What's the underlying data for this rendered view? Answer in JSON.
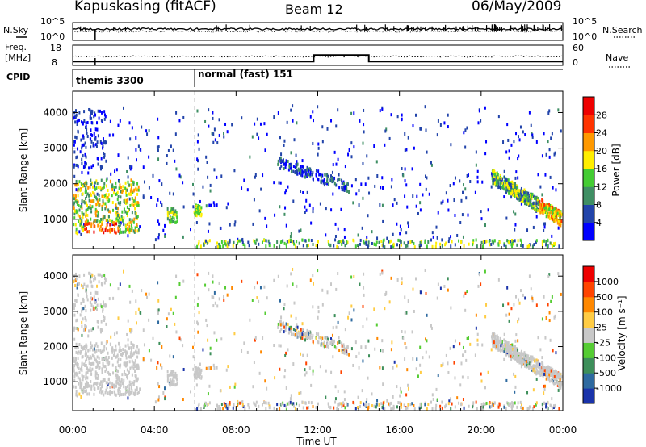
{
  "header": {
    "station": "Kapuskasing (fitACF)",
    "beam": "Beam 12",
    "date": "06/May/2009"
  },
  "top_panels": {
    "nsky_label": "N.Sky",
    "nsearch_label": "N.Search",
    "noise_ticks": [
      "10^5",
      "10^0"
    ],
    "freq_label_1": "Freq.",
    "freq_label_2": "[MHz]",
    "freq_ticks": [
      "18",
      "8"
    ],
    "nave_label": "Nave",
    "nave_ticks": [
      "60",
      "0"
    ],
    "cpid_label": "CPID",
    "cpid_segments": [
      {
        "label": "themis 3300",
        "start_hour": 0
      },
      {
        "label": "normal (fast) 151",
        "start_hour": 6
      }
    ]
  },
  "x_axis": {
    "label": "Time UT",
    "ticks": [
      "00:00",
      "04:00",
      "08:00",
      "12:00",
      "16:00",
      "20:00",
      "00:00"
    ]
  },
  "chart_data": [
    {
      "type": "heatmap",
      "name": "power",
      "ylabel": "Slant Range [km]",
      "yticks": [
        "1000",
        "2000",
        "3000",
        "4000"
      ],
      "xlim_hours": [
        0,
        24
      ],
      "ylim_km": [
        180,
        4600
      ],
      "colorbar_label": "Power [dB]",
      "colorbar_ticks": [
        "4",
        "8",
        "12",
        "16",
        "20",
        "24",
        "28"
      ],
      "colorbar_colors": [
        "#0000ff",
        "#2244aa",
        "#3f8f64",
        "#44cc33",
        "#ffee00",
        "#ff9900",
        "#ff3300",
        "#ee0000"
      ]
    },
    {
      "type": "heatmap",
      "name": "velocity",
      "ylabel": "Slant Range [km]",
      "yticks": [
        "1000",
        "2000",
        "3000",
        "4000"
      ],
      "xlim_hours": [
        0,
        24
      ],
      "ylim_km": [
        180,
        4600
      ],
      "colorbar_label": "Velocity [m s⁻¹]",
      "colorbar_ticks": [
        "1000",
        "500",
        "100",
        "25",
        "-25",
        "-100",
        "-500",
        "-1000"
      ],
      "colorbar_colors": [
        "#1a33aa",
        "#2e6aa0",
        "#3d8f5a",
        "#55cc33",
        "#c8c8c8",
        "#ffcc44",
        "#ff8800",
        "#ff4400",
        "#ee0000"
      ]
    }
  ]
}
